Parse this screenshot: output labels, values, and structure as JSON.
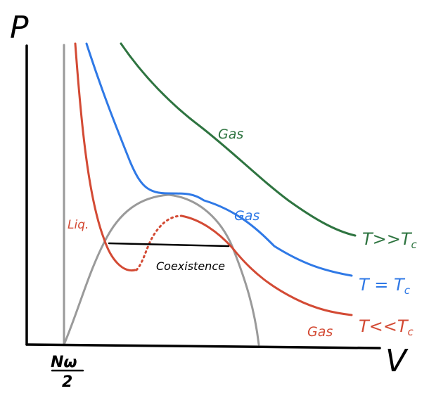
{
  "axes": {
    "y_label": "P",
    "x_label": "V",
    "x_tick_numerator": "Nω",
    "x_tick_denominator": "2"
  },
  "curves": {
    "hot": {
      "name": "T>>Tc",
      "color": "#2e7440",
      "phase_label": "Gas",
      "temp_label_main": "T>>T",
      "temp_label_sub": "c"
    },
    "critical": {
      "name": "T=Tc",
      "color": "#2f79e6",
      "phase_label": "Gas",
      "temp_label_main": "T = T",
      "temp_label_sub": "c"
    },
    "cold": {
      "name": "T<<Tc",
      "color": "#d34a34",
      "liquid_label": "Liq.",
      "phase_label": "Gas",
      "temp_label_main": "T<<T",
      "temp_label_sub": "c"
    }
  },
  "coexistence": {
    "label": "Coexistence",
    "line_color": "#000000",
    "dome_color": "#9a9a9a"
  },
  "asymptote_color": "#9a9a9a",
  "axis_color": "#000000"
}
